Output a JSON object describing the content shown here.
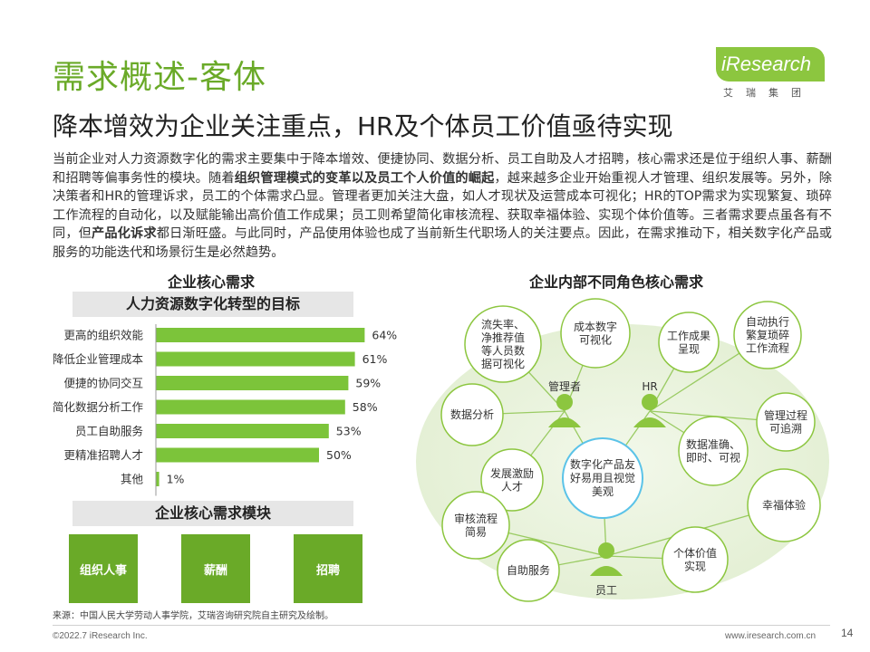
{
  "header": {
    "title": "需求概述-客体",
    "subtitle": "降本增效为企业关注重点，HR及个体员工价值亟待实现",
    "logo_text": "iResearch",
    "logo_sub": "艾瑞集团"
  },
  "intro": {
    "p1": "当前企业对人力资源数字化的需求主要集中于降本增效、便捷协同、数据分析、员工自助及人才招聘，核心需求还是位于组织人事、薪酬和招聘等偏事务性的模块。随着",
    "b1": "组织管理模式的变革以及员工个人价值的崛起",
    "p2": "，越来越多企业开始重视人才管理、组织发展等。另外，除决策者和HR的管理诉求，员工的个体需求凸显。管理者更加关注大盘，如人才现状及运营成本可视化；HR的TOP需求为实现繁复、琐碎工作流程的自动化，以及赋能输出高价值工作成果；员工则希望简化审核流程、获取幸福体验、实现个体价值等。三者需求要点虽各有不同，但",
    "b2": "产品化诉求",
    "p3": "都日渐旺盛。与此同时，产品使用体验也成了当前新生代职场人的关注要点。因此，在需求推动下，相关数字化产品或服务的功能迭代和场景衍生是必然趋势。"
  },
  "left": {
    "section_title": "企业核心需求",
    "banner": "人力资源数字化转型的目标",
    "modules_title": "企业核心需求模块",
    "modules": [
      "组织人事",
      "薪酬",
      "招聘"
    ]
  },
  "chart_data": {
    "type": "bar",
    "orientation": "horizontal",
    "title": "人力资源数字化转型的目标",
    "categories": [
      "更高的组织效能",
      "降低企业管理成本",
      "便捷的协同交互",
      "简化数据分析工作",
      "员工自助服务",
      "更精准招聘人才",
      "其他"
    ],
    "values": [
      64,
      61,
      59,
      58,
      53,
      50,
      1
    ],
    "value_labels": [
      "64%",
      "61%",
      "59%",
      "58%",
      "53%",
      "50%",
      "1%"
    ],
    "unit": "%",
    "xlim": [
      0,
      70
    ],
    "color": "#7cc43a"
  },
  "right": {
    "section_title": "企业内部不同角色核心需求",
    "center": "数字化产品友好易用且视觉美观",
    "roles": {
      "manager": "管理者",
      "hr": "HR",
      "employee": "员工"
    },
    "bubbles": {
      "loss_rate": "流失率、净推荐值等人员数据可视化",
      "cost_viz": "成本数字可视化",
      "work_result": "工作成果呈现",
      "auto_exec": "自动执行繁复琐碎工作流程",
      "data_analysis": "数据分析",
      "process_trace": "管理过程可追溯",
      "data_accuracy": "数据准确、即时、可视",
      "incentive": "发展激励人才",
      "happiness": "幸福体验",
      "approval": "审核流程简易",
      "self_service": "自助服务",
      "personal_value": "个体价值实现"
    }
  },
  "footer": {
    "source": "来源：中国人民大学劳动人事学院，艾瑞咨询研究院自主研究及绘制。",
    "copyright": "©2022.7 iResearch Inc.",
    "website": "www.iresearch.com.cn",
    "page": "14"
  }
}
